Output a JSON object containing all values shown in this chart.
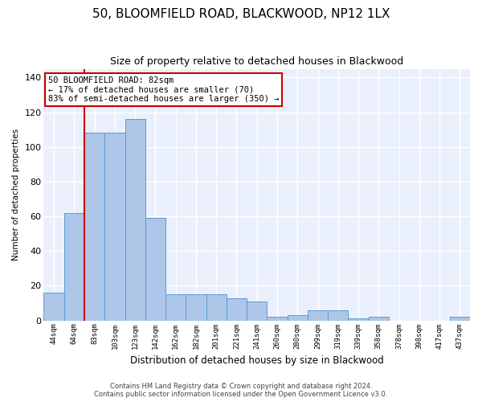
{
  "title": "50, BLOOMFIELD ROAD, BLACKWOOD, NP12 1LX",
  "subtitle": "Size of property relative to detached houses in Blackwood",
  "xlabel": "Distribution of detached houses by size in Blackwood",
  "ylabel": "Number of detached properties",
  "categories": [
    "44sqm",
    "64sqm",
    "83sqm",
    "103sqm",
    "123sqm",
    "142sqm",
    "162sqm",
    "182sqm",
    "201sqm",
    "221sqm",
    "241sqm",
    "260sqm",
    "280sqm",
    "299sqm",
    "319sqm",
    "339sqm",
    "358sqm",
    "378sqm",
    "398sqm",
    "417sqm",
    "437sqm"
  ],
  "values": [
    16,
    62,
    108,
    108,
    116,
    59,
    15,
    15,
    15,
    13,
    11,
    2,
    3,
    6,
    6,
    1,
    2,
    0,
    0,
    0,
    2
  ],
  "bar_color": "#aec6e8",
  "bar_edge_color": "#5b9bd5",
  "reference_line_x": 1.5,
  "reference_line_color": "#cc0000",
  "annotation_text": "50 BLOOMFIELD ROAD: 82sqm\n← 17% of detached houses are smaller (70)\n83% of semi-detached houses are larger (350) →",
  "annotation_box_color": "white",
  "annotation_box_edge_color": "#cc0000",
  "ylim": [
    0,
    145
  ],
  "yticks": [
    0,
    20,
    40,
    60,
    80,
    100,
    120,
    140
  ],
  "background_color": "#eaf0fb",
  "grid_color": "white",
  "footer_line1": "Contains HM Land Registry data © Crown copyright and database right 2024.",
  "footer_line2": "Contains public sector information licensed under the Open Government Licence v3.0."
}
